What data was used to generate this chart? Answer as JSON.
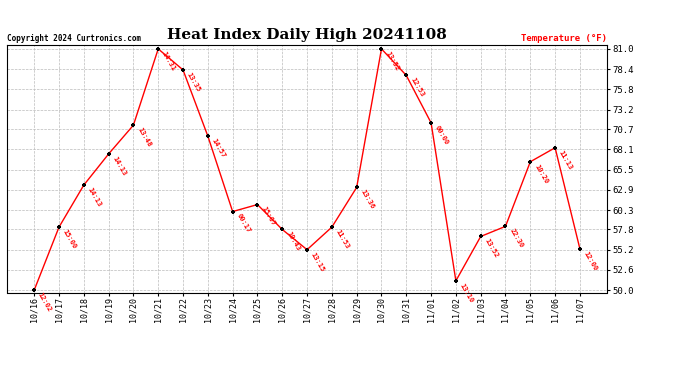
{
  "title": "Heat Index Daily High 20241108",
  "copyright": "Copyright 2024 Curtronics.com",
  "ylabel": "Temperature (°F)",
  "dates": [
    "10/16",
    "10/17",
    "10/18",
    "10/19",
    "10/20",
    "10/21",
    "10/22",
    "10/23",
    "10/24",
    "10/25",
    "10/26",
    "10/27",
    "10/28",
    "10/29",
    "10/30",
    "10/31",
    "11/01",
    "11/02",
    "11/03",
    "11/04",
    "11/05",
    "11/06",
    "11/07"
  ],
  "values": [
    50.0,
    58.1,
    63.5,
    67.5,
    71.2,
    81.0,
    78.3,
    69.8,
    60.1,
    61.0,
    57.8,
    55.2,
    58.1,
    63.2,
    81.0,
    77.6,
    71.5,
    51.2,
    56.9,
    58.2,
    66.5,
    68.3,
    55.3
  ],
  "times": [
    "12:02",
    "15:00",
    "14:13",
    "14:13",
    "13:48",
    "14:31",
    "13:35",
    "14:57",
    "00:17",
    "15:07",
    "10:43",
    "13:15",
    "11:53",
    "13:36",
    "13:52",
    "12:53",
    "00:00",
    "13:10",
    "13:52",
    "22:30",
    "10:20",
    "11:13",
    "12:00"
  ],
  "ylim_min": 50.0,
  "ylim_max": 81.0,
  "yticks": [
    50.0,
    52.6,
    55.2,
    57.8,
    60.3,
    62.9,
    65.5,
    68.1,
    70.7,
    73.2,
    75.8,
    78.4,
    81.0
  ],
  "line_color": "red",
  "marker_color": "black",
  "grid_color": "#bbbbbb",
  "title_fontsize": 11,
  "background_color": "white",
  "fig_width": 6.9,
  "fig_height": 3.75,
  "dpi": 100
}
